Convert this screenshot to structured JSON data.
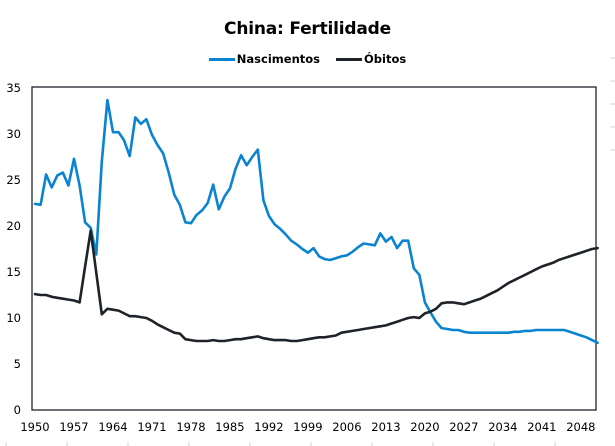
{
  "chart_data": {
    "type": "line",
    "title": "China: Fertilidade",
    "xlabel": "",
    "ylabel": "",
    "ylim": [
      0,
      35
    ],
    "xlim": [
      1950,
      2050
    ],
    "yticks": [
      0,
      5,
      10,
      15,
      20,
      25,
      30,
      35
    ],
    "xticks": [
      1950,
      1957,
      1964,
      1971,
      1978,
      1985,
      1992,
      1999,
      2006,
      2013,
      2020,
      2027,
      2034,
      2041,
      2048
    ],
    "grid": false,
    "legend_position": "top-center",
    "series": [
      {
        "name": "Nascimentos",
        "color": "#0a84d0",
        "x_start": 1950,
        "values": [
          22.4,
          22.3,
          25.6,
          24.2,
          25.5,
          25.8,
          24.4,
          27.3,
          24.4,
          20.4,
          19.8,
          16.9,
          27.0,
          33.7,
          30.2,
          30.2,
          29.3,
          27.6,
          31.8,
          31.1,
          31.6,
          29.9,
          28.8,
          27.9,
          25.8,
          23.4,
          22.3,
          20.4,
          20.3,
          21.2,
          21.7,
          22.5,
          24.5,
          21.8,
          23.2,
          24.1,
          26.2,
          27.7,
          26.6,
          27.5,
          28.3,
          22.8,
          21.1,
          20.2,
          19.7,
          19.1,
          18.4,
          18.0,
          17.5,
          17.1,
          17.6,
          16.7,
          16.4,
          16.3,
          16.5,
          16.7,
          16.8,
          17.2,
          17.7,
          18.1,
          18.0,
          17.9,
          19.2,
          18.3,
          18.8,
          17.6,
          18.4,
          18.4,
          15.4,
          14.7,
          11.7,
          10.6,
          9.6,
          8.9,
          8.8,
          8.7,
          8.7,
          8.5,
          8.4,
          8.4,
          8.4,
          8.4,
          8.4,
          8.4,
          8.4,
          8.4,
          8.5,
          8.5,
          8.6,
          8.6,
          8.7,
          8.7,
          8.7,
          8.7,
          8.7,
          8.7,
          8.5,
          8.3,
          8.1,
          7.9,
          7.6,
          7.3
        ]
      },
      {
        "name": "Óbitos",
        "color": "#1e2329",
        "x_start": 1950,
        "values": [
          12.6,
          12.5,
          12.5,
          12.3,
          12.2,
          12.1,
          12.0,
          11.9,
          11.7,
          15.6,
          19.5,
          14.9,
          10.4,
          11.0,
          10.9,
          10.8,
          10.5,
          10.2,
          10.2,
          10.1,
          10.0,
          9.7,
          9.3,
          9.0,
          8.7,
          8.4,
          8.3,
          7.7,
          7.6,
          7.5,
          7.5,
          7.5,
          7.6,
          7.5,
          7.5,
          7.6,
          7.7,
          7.7,
          7.8,
          7.9,
          8.0,
          7.8,
          7.7,
          7.6,
          7.6,
          7.6,
          7.5,
          7.5,
          7.6,
          7.7,
          7.8,
          7.9,
          7.9,
          8.0,
          8.1,
          8.4,
          8.5,
          8.6,
          8.7,
          8.8,
          8.9,
          9.0,
          9.1,
          9.2,
          9.4,
          9.6,
          9.8,
          10.0,
          10.1,
          10.0,
          10.5,
          10.7,
          11.0,
          11.6,
          11.7,
          11.7,
          11.6,
          11.5,
          11.7,
          11.9,
          12.1,
          12.4,
          12.7,
          13.0,
          13.4,
          13.8,
          14.1,
          14.4,
          14.7,
          15.0,
          15.3,
          15.6,
          15.8,
          16.0,
          16.3,
          16.5,
          16.7,
          16.9,
          17.1,
          17.3,
          17.5,
          17.6
        ]
      }
    ]
  }
}
